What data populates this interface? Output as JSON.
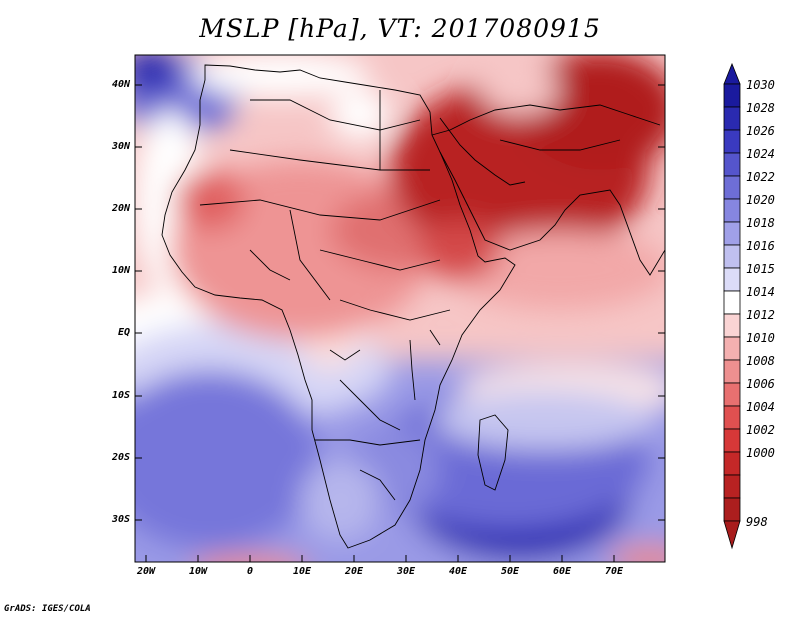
{
  "title": "MSLP [hPa], VT: 2017080915",
  "credit": "GrADS: IGES/COLA",
  "lat_labels": [
    "40N",
    "30N",
    "20N",
    "10N",
    "EQ",
    "10S",
    "20S",
    "30S"
  ],
  "lon_labels": [
    "20W",
    "10W",
    "0",
    "10E",
    "20E",
    "30E",
    "40E",
    "50E",
    "60E",
    "70E"
  ],
  "colorbar": {
    "labels": [
      "1030",
      "1028",
      "1026",
      "1024",
      "1022",
      "1020",
      "1018",
      "1016",
      "1015",
      "1014",
      "1012",
      "1010",
      "1008",
      "1006",
      "1004",
      "1002",
      "1000",
      "998"
    ],
    "colors": [
      "#1a1a9e",
      "#2a2ab0",
      "#3a3ac0",
      "#5555cc",
      "#6e6ed6",
      "#8686e0",
      "#a0a0e8",
      "#c0c0f0",
      "#dcdcf8",
      "#ffffff",
      "#fad4d4",
      "#f4b0b0",
      "#ee9090",
      "#e87070",
      "#e05050",
      "#d63838",
      "#c42828",
      "#a81c1c"
    ]
  }
}
